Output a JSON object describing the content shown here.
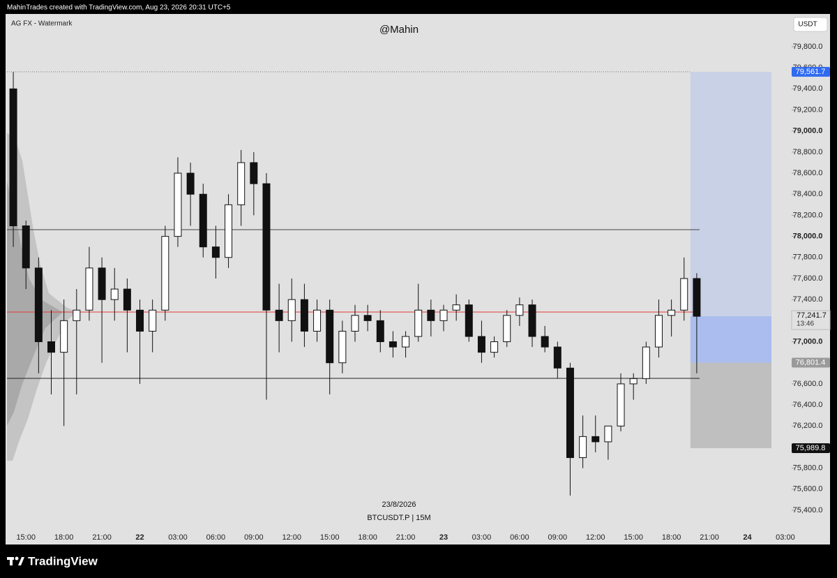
{
  "header": {
    "credit": "MahinTrades created with TradingView.com, Aug 23, 2026 20:31 UTC+5"
  },
  "footer": {
    "brand": "TradingView"
  },
  "chart_data": {
    "type": "candlestick",
    "title": "@Mahin",
    "indicator": "AG FX - Watermark",
    "watermark_date": "23/8/2026",
    "symbol": "BTCUSDT.P | 15M",
    "currency": "USDT",
    "categories": [
      null,
      "15:00",
      null,
      null,
      "18:00",
      null,
      null,
      "21:00",
      null,
      null,
      "22",
      null,
      null,
      "03:00",
      null,
      null,
      "06:00",
      null,
      null,
      "09:00",
      null,
      null,
      "12:00",
      null,
      null,
      "15:00",
      null,
      null,
      "18:00",
      null,
      null,
      "21:00",
      null,
      null,
      "23",
      null,
      null,
      "03:00",
      null,
      null,
      "06:00",
      null,
      null,
      "09:00",
      null,
      null,
      "12:00",
      null,
      null,
      "15:00",
      null,
      null,
      "18:00",
      null,
      null,
      "21:00",
      null,
      null,
      "24",
      null,
      null,
      "03:00"
    ],
    "open": [
      79400,
      78100,
      77700,
      77000,
      76900,
      77200,
      77300,
      77700,
      77400,
      77500,
      77300,
      77100,
      77300,
      78000,
      78600,
      78400,
      77900,
      77800,
      78300,
      78700,
      78500,
      77300,
      77200,
      77400,
      77100,
      77300,
      76800,
      77100,
      77250,
      77200,
      77000,
      76950,
      77050,
      77300,
      77200,
      77300,
      77350,
      77050,
      76900,
      77000,
      77250,
      77350,
      77050,
      76950,
      76750,
      75900,
      76100,
      76050,
      76200,
      76600,
      76650,
      76950,
      77250,
      77300,
      77600,
      null,
      null,
      null,
      null,
      null,
      null,
      null
    ],
    "high": [
      79560,
      78150,
      77800,
      77300,
      77400,
      77500,
      77900,
      77800,
      77700,
      77600,
      77400,
      77400,
      78100,
      78750,
      78700,
      78500,
      78100,
      78400,
      78820,
      78800,
      78600,
      77550,
      77600,
      77550,
      77400,
      77400,
      77200,
      77350,
      77350,
      77300,
      77100,
      77100,
      77550,
      77400,
      77350,
      77450,
      77400,
      77200,
      77050,
      77300,
      77420,
      77400,
      77150,
      77000,
      76800,
      76300,
      76300,
      76200,
      76700,
      76700,
      77000,
      77400,
      77400,
      77800,
      77650,
      null,
      null,
      null,
      null,
      null,
      null,
      null
    ],
    "low": [
      77900,
      77500,
      76700,
      76500,
      76200,
      76500,
      77200,
      76800,
      77200,
      76900,
      76600,
      76900,
      77200,
      77900,
      78100,
      77800,
      77600,
      77700,
      78100,
      78200,
      76450,
      76900,
      77000,
      76950,
      77000,
      76500,
      76700,
      77000,
      77100,
      76900,
      76850,
      76850,
      77000,
      77050,
      77100,
      77200,
      77000,
      76800,
      76850,
      76950,
      77150,
      76950,
      76900,
      76650,
      75540,
      75800,
      75950,
      75880,
      76150,
      76450,
      76600,
      76850,
      77050,
      77200,
      76700,
      null,
      null,
      null,
      null,
      null,
      null,
      null
    ],
    "close": [
      78100,
      77700,
      77000,
      76900,
      77200,
      77300,
      77700,
      77400,
      77500,
      77300,
      77100,
      77300,
      78000,
      78600,
      78400,
      77900,
      77800,
      78300,
      78700,
      78500,
      77300,
      77200,
      77400,
      77100,
      77300,
      76800,
      77100,
      77250,
      77200,
      77000,
      76950,
      77050,
      77300,
      77200,
      77300,
      77350,
      77050,
      76900,
      77000,
      77250,
      77350,
      77050,
      76950,
      76750,
      75900,
      76100,
      76050,
      76200,
      76600,
      76650,
      76950,
      77250,
      77300,
      77600,
      77241.7,
      null,
      null,
      null,
      null,
      null,
      null,
      null
    ],
    "up_color": "#ffffff",
    "down_color": "#111111",
    "ylim": [
      75208,
      80111
    ],
    "yticks": [
      {
        "value": 75400,
        "label": "75,400.0"
      },
      {
        "value": 75600,
        "label": "75,600.0"
      },
      {
        "value": 75800,
        "label": "75,800.0"
      },
      {
        "value": 76000,
        "label": "76,000.0"
      },
      {
        "value": 76200,
        "label": "76,200.0"
      },
      {
        "value": 76400,
        "label": "76,400.0"
      },
      {
        "value": 76600,
        "label": "76,600.0"
      },
      {
        "value": 76800,
        "label": "76,800.0"
      },
      {
        "value": 77000,
        "label": "77,000.0"
      },
      {
        "value": 77200,
        "label": "77,200.0"
      },
      {
        "value": 77400,
        "label": "77,400.0"
      },
      {
        "value": 77600,
        "label": "77,600.0"
      },
      {
        "value": 77800,
        "label": "77,800.0"
      },
      {
        "value": 78000,
        "label": "78,000.0"
      },
      {
        "value": 78200,
        "label": "78,200.0"
      },
      {
        "value": 78400,
        "label": "78,400.0"
      },
      {
        "value": 78600,
        "label": "78,600.0"
      },
      {
        "value": 78800,
        "label": "78,800.0"
      },
      {
        "value": 79000,
        "label": "79,000.0"
      },
      {
        "value": 79200,
        "label": "79,200.0"
      },
      {
        "value": 79400,
        "label": "79,400.0"
      },
      {
        "value": 79600,
        "label": "79,600.0"
      },
      {
        "value": 79800,
        "label": "79,800.0"
      }
    ],
    "levels": [
      {
        "value": 78064,
        "color": "#444444"
      },
      {
        "value": 77282,
        "color": "#e53935"
      },
      {
        "value": 76652,
        "color": "#222222"
      }
    ],
    "position": {
      "target": {
        "value": 79561.7,
        "label": "79,561.7"
      },
      "current": {
        "value": 77241.7,
        "label": "77,241.7"
      },
      "entry": {
        "value": 76801.4,
        "label": "76,801.4"
      },
      "stop": {
        "value": 75989.8,
        "label": "75,989.8"
      },
      "countdown": "13:46"
    }
  }
}
